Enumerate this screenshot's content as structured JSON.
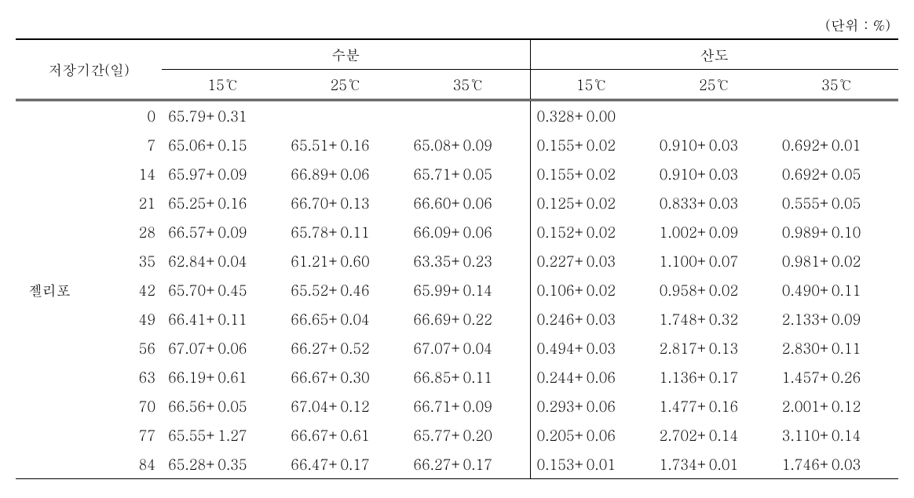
{
  "unit_label": "(단위 : %)",
  "headers": {
    "period": "저장기간(일)",
    "moisture": "수분",
    "acidity": "산도",
    "t15": "15℃",
    "t25": "25℃",
    "t35": "35℃"
  },
  "row_label": "젤리포",
  "rows": [
    {
      "day": "0",
      "m15": "65.79+0.31",
      "m25": "",
      "m35": "",
      "a15": "0.328+0.00",
      "a25": "",
      "a35": ""
    },
    {
      "day": "7",
      "m15": "65.06+0.15",
      "m25": "65.51+0.16",
      "m35": "65.08+0.09",
      "a15": "0.155+0.02",
      "a25": "0.910+0.03",
      "a35": "0.692+0.01"
    },
    {
      "day": "14",
      "m15": "65.97+0.09",
      "m25": "66.89+0.06",
      "m35": "65.71+0.05",
      "a15": "0.155+0.02",
      "a25": "0.910+0.03",
      "a35": "0.692+0.05"
    },
    {
      "day": "21",
      "m15": "65.25+0.16",
      "m25": "66.70+0.13",
      "m35": "66.60+0.06",
      "a15": "0.125+0.02",
      "a25": "0.833+0.03",
      "a35": "0.555+0.05"
    },
    {
      "day": "28",
      "m15": "66.57+0.09",
      "m25": "65.78+0.11",
      "m35": "66.09+0.06",
      "a15": "0.152+0.02",
      "a25": "1.002+0.09",
      "a35": "0.989+0.10"
    },
    {
      "day": "35",
      "m15": "62.84+0.04",
      "m25": "61.21+0.60",
      "m35": "63.35+0.23",
      "a15": "0.227+0.03",
      "a25": "1.100+0.07",
      "a35": "0.981+0.02"
    },
    {
      "day": "42",
      "m15": "65.70+0.45",
      "m25": "65.52+0.46",
      "m35": "65.99+0.14",
      "a15": "0.106+0.02",
      "a25": "0.958+0.02",
      "a35": "0.490+0.11"
    },
    {
      "day": "49",
      "m15": "66.41+0.11",
      "m25": "66.65+0.04",
      "m35": "66.69+0.22",
      "a15": "0.246+0.03",
      "a25": "1.748+0.32",
      "a35": "2.133+0.09"
    },
    {
      "day": "56",
      "m15": "67.07+0.06",
      "m25": "66.27+0.52",
      "m35": "67.07+0.04",
      "a15": "0.494+0.03",
      "a25": "2.817+0.13",
      "a35": "2.830+0.11"
    },
    {
      "day": "63",
      "m15": "66.19+0.61",
      "m25": "66.67+0.30",
      "m35": "66.85+0.11",
      "a15": "0.244+0.06",
      "a25": "1.136+0.17",
      "a35": "1.457+0.26"
    },
    {
      "day": "70",
      "m15": "66.56+0.05",
      "m25": "67.04+0.12",
      "m35": "66.71+0.09",
      "a15": "0.293+0.06",
      "a25": "1.477+0.16",
      "a35": "2.001+0.12"
    },
    {
      "day": "77",
      "m15": "65.55+1.27",
      "m25": "66.67+0.61",
      "m35": "65.77+0.20",
      "a15": "0.205+0.06",
      "a25": "2.702+0.14",
      "a35": "3.110+0.14"
    },
    {
      "day": "84",
      "m15": "65.28+0.35",
      "m25": "66.47+0.17",
      "m35": "66.27+0.17",
      "a15": "0.153+0.01",
      "a25": "1.734+0.01",
      "a35": "1.746+0.03"
    }
  ],
  "style": {
    "font_size_pt": 18,
    "text_color": "#000000",
    "background_color": "#ffffff",
    "border_color": "#000000"
  }
}
